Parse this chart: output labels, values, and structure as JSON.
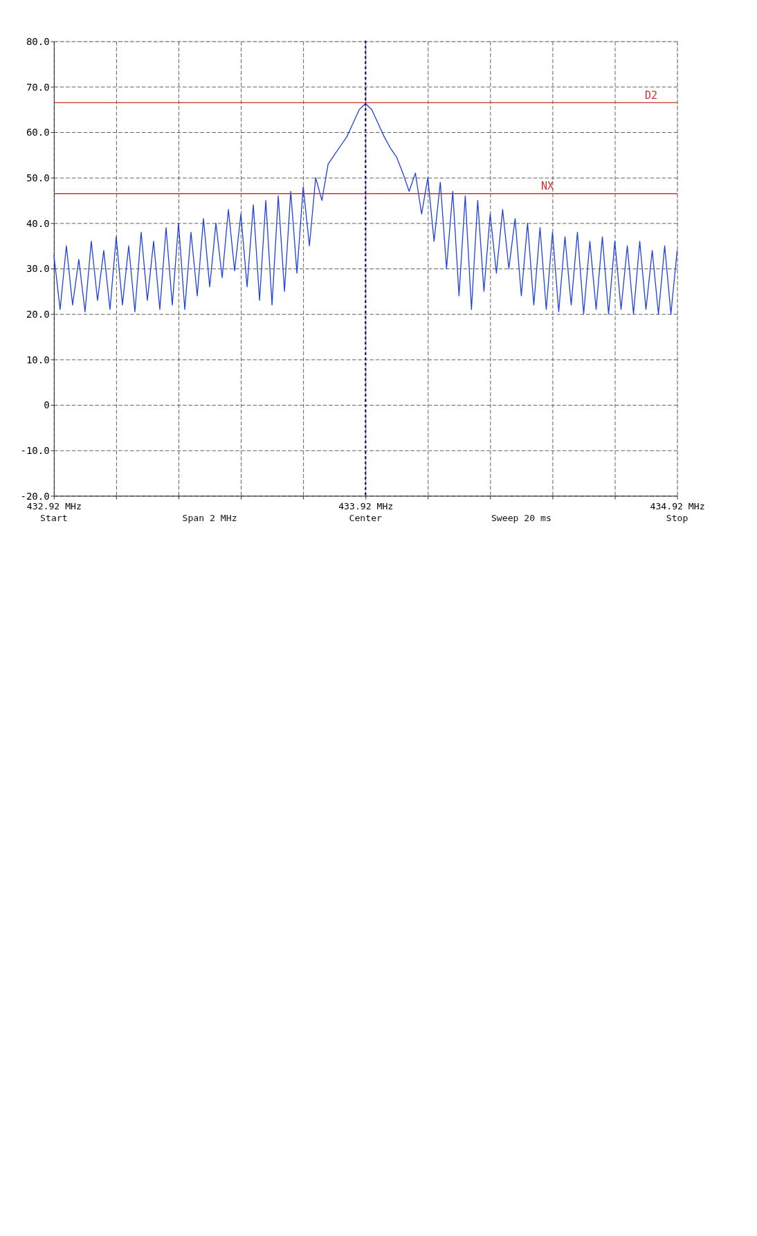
{
  "chart_data": {
    "type": "line",
    "x": [
      432.92,
      432.94,
      432.96,
      432.98,
      433.0,
      433.02,
      433.04,
      433.06,
      433.08,
      433.1,
      433.12,
      433.14,
      433.16,
      433.18,
      433.2,
      433.22,
      433.24,
      433.26,
      433.28,
      433.3,
      433.32,
      433.34,
      433.36,
      433.38,
      433.4,
      433.42,
      433.44,
      433.46,
      433.48,
      433.5,
      433.52,
      433.54,
      433.56,
      433.58,
      433.6,
      433.62,
      433.64,
      433.66,
      433.68,
      433.7,
      433.72,
      433.74,
      433.76,
      433.78,
      433.8,
      433.82,
      433.84,
      433.86,
      433.88,
      433.9,
      433.92,
      433.94,
      433.96,
      433.98,
      434.0,
      434.02,
      434.04,
      434.06,
      434.08,
      434.1,
      434.12,
      434.14,
      434.16,
      434.18,
      434.2,
      434.22,
      434.24,
      434.26,
      434.28,
      434.3,
      434.32,
      434.34,
      434.36,
      434.38,
      434.4,
      434.42,
      434.44,
      434.46,
      434.48,
      434.5,
      434.52,
      434.54,
      434.56,
      434.58,
      434.6,
      434.62,
      434.64,
      434.66,
      434.68,
      434.7,
      434.72,
      434.74,
      434.76,
      434.78,
      434.8,
      434.82,
      434.84,
      434.86,
      434.88,
      434.9,
      434.92
    ],
    "series": [
      {
        "color": "#2040e0",
        "values": [
          33,
          21,
          35,
          22,
          32,
          20.5,
          36,
          23,
          34,
          21,
          37,
          22,
          35,
          20.5,
          38,
          23,
          36,
          21,
          39,
          22,
          40,
          21,
          38,
          24,
          41,
          26,
          40,
          28,
          43,
          29.5,
          42,
          26,
          44,
          23,
          45,
          22,
          46,
          25,
          47,
          29,
          48,
          35,
          50,
          45,
          53,
          55,
          57,
          59,
          62,
          65,
          66.3,
          65,
          62,
          59,
          56.5,
          54.5,
          51,
          47,
          51,
          42,
          50,
          36,
          49,
          30,
          47,
          24,
          46,
          21,
          45,
          25,
          42,
          29,
          43,
          30,
          41,
          24,
          40,
          22,
          39,
          21,
          38,
          20.5,
          37,
          22,
          38,
          20,
          36,
          21,
          37,
          20,
          36,
          21,
          35,
          20,
          36,
          21,
          34,
          20,
          35,
          20,
          34
        ]
      }
    ],
    "xlim": [
      432.92,
      434.92
    ],
    "xticks": [
      {
        "value": 432.92,
        "label": "432.92 MHz"
      },
      {
        "value": 433.12,
        "label": null
      },
      {
        "value": 433.32,
        "label": null
      },
      {
        "value": 433.52,
        "label": null
      },
      {
        "value": 433.72,
        "label": null
      },
      {
        "value": 433.92,
        "label": "433.92 MHz"
      },
      {
        "value": 434.12,
        "label": null
      },
      {
        "value": 434.32,
        "label": null
      },
      {
        "value": 434.52,
        "label": null
      },
      {
        "value": 434.72,
        "label": null
      },
      {
        "value": 434.92,
        "label": "434.92 MHz"
      }
    ],
    "ylim": [
      -20,
      80
    ],
    "yticks": [
      {
        "value": -20,
        "label": "-20.0"
      },
      {
        "value": -10,
        "label": "-10.0"
      },
      0,
      {
        "value": 10,
        "label": "10.0"
      },
      {
        "value": 20,
        "label": "20.0"
      },
      {
        "value": 30,
        "label": "30.0"
      },
      {
        "value": 40,
        "label": "40.0"
      },
      {
        "value": 50,
        "label": "50.0"
      },
      {
        "value": 60,
        "label": "60.0"
      },
      {
        "value": 70,
        "label": "70.0"
      },
      {
        "value": 80,
        "label": "80.0"
      }
    ],
    "ref_lines": [
      {
        "axis": "y",
        "value": 66.5,
        "label": "D2",
        "color": "#d03030",
        "line_style": "solid"
      },
      {
        "axis": "y",
        "value": 46.5,
        "label": "NX",
        "color": "#d03030",
        "line_style": "solid"
      },
      {
        "axis": "x",
        "value": 433.92,
        "label": null,
        "color": "#1a1a70",
        "line_style": "dotted"
      }
    ],
    "annotations": [
      "Start",
      "Span 2 MHz",
      "Center",
      "Sweep 20 ms",
      "Stop"
    ],
    "grid": true,
    "marker": "none",
    "line_style": "solid"
  }
}
